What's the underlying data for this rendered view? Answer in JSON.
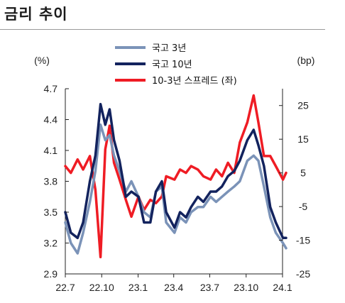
{
  "title": "금리 추이",
  "chart_data": {
    "type": "line",
    "title": "금리 추이",
    "left_axis": {
      "unit": "(%)",
      "ylim": [
        2.9,
        4.7
      ],
      "ticks": [
        "4.7",
        "4.4",
        "4.1",
        "3.8",
        "3.5",
        "3.2",
        "2.9"
      ]
    },
    "right_axis": {
      "unit": "(bp)",
      "ylim": [
        -25,
        30
      ],
      "ticks": [
        "25",
        "15",
        "5",
        "-5",
        "-15",
        "-25"
      ]
    },
    "x_ticks": [
      "22.7",
      "22.10",
      "23.1",
      "23.4",
      "23.7",
      "23.10",
      "24.1"
    ],
    "legend": {
      "placement": "top"
    },
    "series": [
      {
        "name": "국고 3년",
        "axis": "left",
        "color": "#7b93b8",
        "x": [
          "2022-07-01",
          "2022-07-15",
          "2022-08-01",
          "2022-08-15",
          "2022-09-01",
          "2022-09-15",
          "2022-09-28",
          "2022-10-10",
          "2022-10-21",
          "2022-11-01",
          "2022-11-15",
          "2022-12-01",
          "2022-12-15",
          "2023-01-02",
          "2023-01-16",
          "2023-02-01",
          "2023-02-15",
          "2023-03-02",
          "2023-03-13",
          "2023-04-03",
          "2023-04-17",
          "2023-05-02",
          "2023-05-15",
          "2023-06-01",
          "2023-06-15",
          "2023-07-03",
          "2023-07-17",
          "2023-08-01",
          "2023-08-16",
          "2023-09-01",
          "2023-09-15",
          "2023-10-04",
          "2023-10-20",
          "2023-11-01",
          "2023-11-15",
          "2023-12-01",
          "2023-12-15",
          "2024-01-02",
          "2024-01-10"
        ],
        "y": [
          3.4,
          3.2,
          3.1,
          3.3,
          3.6,
          3.9,
          4.35,
          4.2,
          4.25,
          4.05,
          3.9,
          3.7,
          3.8,
          3.65,
          3.5,
          3.45,
          3.7,
          3.75,
          3.4,
          3.3,
          3.45,
          3.4,
          3.5,
          3.55,
          3.55,
          3.65,
          3.6,
          3.65,
          3.7,
          3.75,
          3.8,
          4.0,
          4.05,
          4.0,
          3.75,
          3.45,
          3.3,
          3.2,
          3.15
        ]
      },
      {
        "name": "국고 10년",
        "axis": "left",
        "color": "#13235e",
        "x": [
          "2022-07-01",
          "2022-07-15",
          "2022-08-01",
          "2022-08-15",
          "2022-09-01",
          "2022-09-15",
          "2022-09-28",
          "2022-10-10",
          "2022-10-21",
          "2022-11-01",
          "2022-11-15",
          "2022-12-01",
          "2022-12-15",
          "2023-01-02",
          "2023-01-16",
          "2023-02-01",
          "2023-02-15",
          "2023-03-02",
          "2023-03-13",
          "2023-04-03",
          "2023-04-17",
          "2023-05-02",
          "2023-05-15",
          "2023-06-01",
          "2023-06-15",
          "2023-07-03",
          "2023-07-17",
          "2023-08-01",
          "2023-08-16",
          "2023-09-01",
          "2023-09-15",
          "2023-10-04",
          "2023-10-20",
          "2023-11-01",
          "2023-11-15",
          "2023-12-01",
          "2023-12-15",
          "2024-01-02",
          "2024-01-10"
        ],
        "y": [
          3.5,
          3.3,
          3.25,
          3.4,
          3.8,
          4.05,
          4.55,
          4.35,
          4.5,
          4.2,
          4.0,
          3.65,
          3.7,
          3.65,
          3.4,
          3.4,
          3.7,
          3.8,
          3.5,
          3.35,
          3.5,
          3.45,
          3.55,
          3.65,
          3.6,
          3.7,
          3.7,
          3.75,
          3.85,
          3.9,
          4.0,
          4.2,
          4.3,
          4.15,
          3.95,
          3.55,
          3.4,
          3.25,
          3.25
        ]
      },
      {
        "name": "10-3년 스프레드 (좌)",
        "axis": "right",
        "color": "#ef1c24",
        "x": [
          "2022-07-01",
          "2022-07-15",
          "2022-08-01",
          "2022-08-15",
          "2022-09-01",
          "2022-09-15",
          "2022-09-28",
          "2022-10-10",
          "2022-10-21",
          "2022-11-01",
          "2022-11-15",
          "2022-12-01",
          "2022-12-15",
          "2023-01-02",
          "2023-01-16",
          "2023-02-01",
          "2023-02-15",
          "2023-03-02",
          "2023-03-13",
          "2023-04-03",
          "2023-04-17",
          "2023-05-02",
          "2023-05-15",
          "2023-06-01",
          "2023-06-15",
          "2023-07-03",
          "2023-07-17",
          "2023-08-01",
          "2023-08-16",
          "2023-09-01",
          "2023-09-15",
          "2023-10-04",
          "2023-10-20",
          "2023-11-01",
          "2023-11-15",
          "2023-12-01",
          "2023-12-15",
          "2024-01-02",
          "2024-01-10"
        ],
        "y": [
          7,
          5,
          9,
          6,
          10,
          0,
          -20,
          12,
          19,
          8,
          3,
          -3,
          -8,
          -2,
          -6,
          -3,
          -4,
          -2,
          4,
          3,
          6,
          5,
          7,
          6,
          4,
          3,
          6,
          4,
          8,
          5,
          14,
          20,
          28,
          20,
          10,
          10,
          7,
          3,
          5
        ]
      }
    ]
  }
}
